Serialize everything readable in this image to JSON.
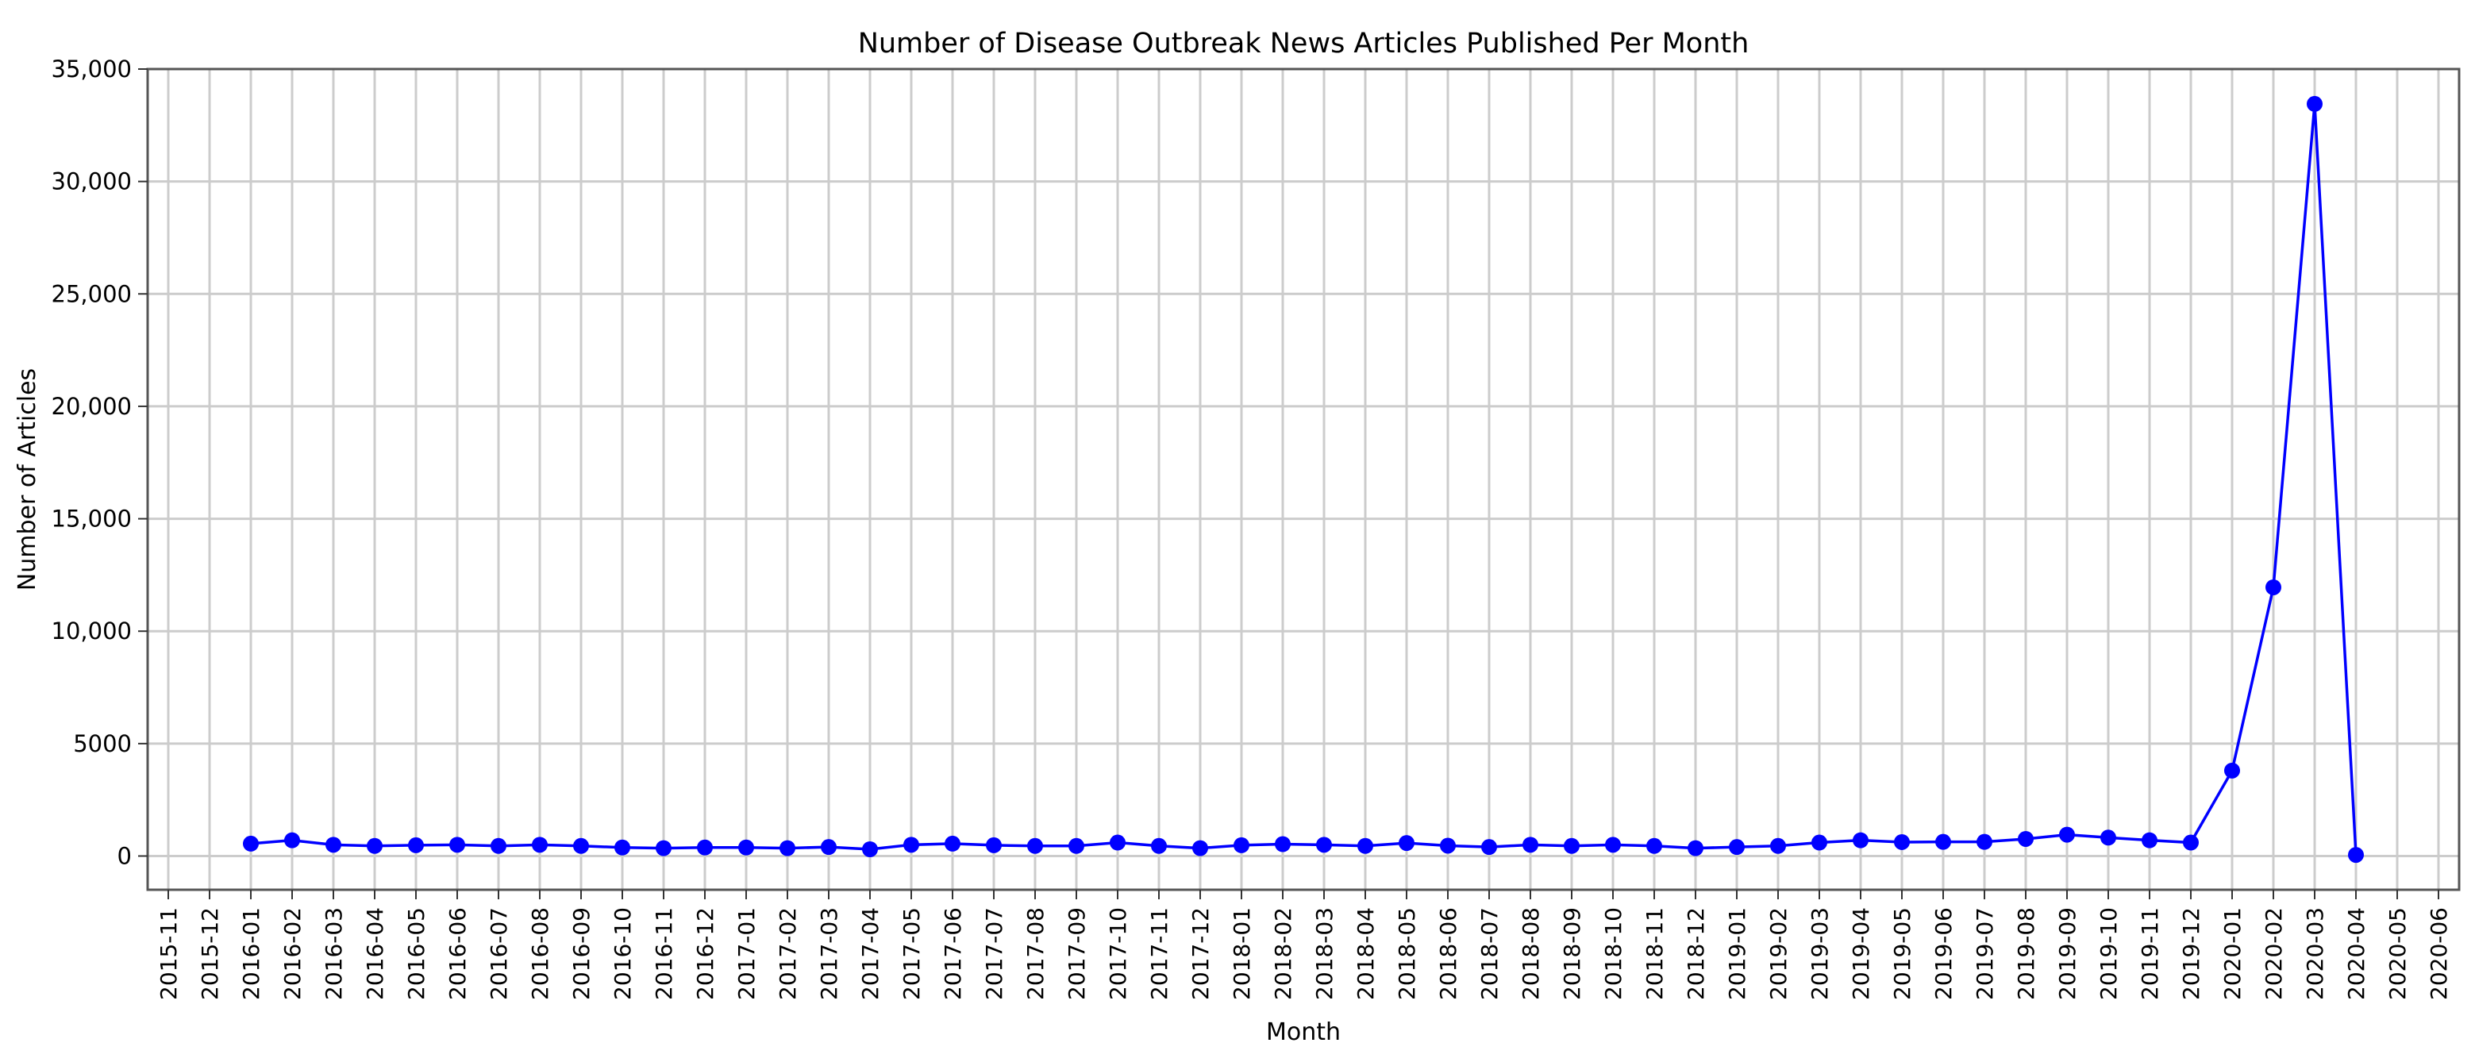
{
  "chart_data": {
    "type": "line",
    "title": "Number of Disease Outbreak News Articles Published Per Month",
    "xlabel": "Month",
    "ylabel": "Number of Articles",
    "xlim": [
      "2015-11",
      "2020-06"
    ],
    "ylim": [
      -1500,
      35000
    ],
    "x_ticks": [
      "2015-11",
      "2015-12",
      "2016-01",
      "2016-02",
      "2016-03",
      "2016-04",
      "2016-05",
      "2016-06",
      "2016-07",
      "2016-08",
      "2016-09",
      "2016-10",
      "2016-11",
      "2016-12",
      "2017-01",
      "2017-02",
      "2017-03",
      "2017-04",
      "2017-05",
      "2017-06",
      "2017-07",
      "2017-08",
      "2017-09",
      "2017-10",
      "2017-11",
      "2017-12",
      "2018-01",
      "2018-02",
      "2018-03",
      "2018-04",
      "2018-05",
      "2018-06",
      "2018-07",
      "2018-08",
      "2018-09",
      "2018-10",
      "2018-11",
      "2018-12",
      "2019-01",
      "2019-02",
      "2019-03",
      "2019-04",
      "2019-05",
      "2019-06",
      "2019-07",
      "2019-08",
      "2019-09",
      "2019-10",
      "2019-11",
      "2019-12",
      "2020-01",
      "2020-02",
      "2020-03",
      "2020-04",
      "2020-05",
      "2020-06"
    ],
    "y_ticks": [
      {
        "value": 0,
        "label": "0"
      },
      {
        "value": 5000,
        "label": "5000"
      },
      {
        "value": 10000,
        "label": "10,000"
      },
      {
        "value": 15000,
        "label": "15,000"
      },
      {
        "value": 20000,
        "label": "20,000"
      },
      {
        "value": 25000,
        "label": "25,000"
      },
      {
        "value": 30000,
        "label": "30,000"
      },
      {
        "value": 35000,
        "label": "35,000"
      }
    ],
    "grid": true,
    "series": [
      {
        "color": "#0000ff",
        "marker": "circle",
        "x": [
          "2016-01",
          "2016-02",
          "2016-03",
          "2016-04",
          "2016-05",
          "2016-06",
          "2016-07",
          "2016-08",
          "2016-09",
          "2016-10",
          "2016-11",
          "2016-12",
          "2017-01",
          "2017-02",
          "2017-03",
          "2017-04",
          "2017-05",
          "2017-06",
          "2017-07",
          "2017-08",
          "2017-09",
          "2017-10",
          "2017-11",
          "2017-12",
          "2018-01",
          "2018-02",
          "2018-03",
          "2018-04",
          "2018-05",
          "2018-06",
          "2018-07",
          "2018-08",
          "2018-09",
          "2018-10",
          "2018-11",
          "2018-12",
          "2019-01",
          "2019-02",
          "2019-03",
          "2019-04",
          "2019-05",
          "2019-06",
          "2019-07",
          "2019-08",
          "2019-09",
          "2019-10",
          "2019-11",
          "2019-12",
          "2020-01",
          "2020-02",
          "2020-03",
          "2020-04"
        ],
        "values": [
          550,
          700,
          500,
          450,
          480,
          500,
          450,
          500,
          450,
          380,
          350,
          380,
          380,
          350,
          400,
          300,
          500,
          550,
          480,
          450,
          450,
          600,
          450,
          350,
          480,
          530,
          500,
          450,
          580,
          460,
          400,
          500,
          450,
          500,
          450,
          350,
          400,
          450,
          600,
          700,
          620,
          630,
          630,
          760,
          950,
          820,
          700,
          600,
          3800,
          11950,
          33450,
          50
        ]
      }
    ]
  }
}
